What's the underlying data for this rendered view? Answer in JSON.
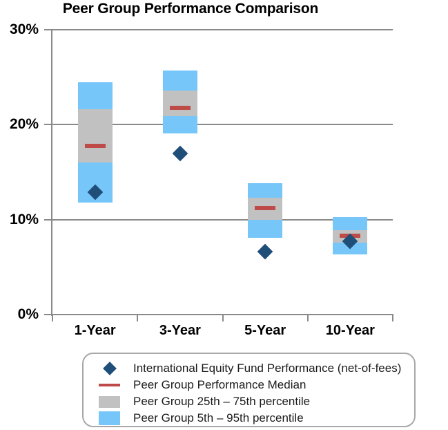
{
  "chart_data": {
    "type": "range-bar",
    "title": "Peer Group Performance Comparison",
    "categories": [
      "1-Year",
      "3-Year",
      "5-Year",
      "10-Year"
    ],
    "xlabel": "",
    "ylabel": "",
    "unit": "%",
    "ylim": [
      0,
      30
    ],
    "y_axis": {
      "tick_values": [
        30,
        20,
        10,
        0
      ],
      "tick_labels": [
        "30%",
        "20%",
        "10%",
        "0%"
      ]
    },
    "grid": true,
    "legend_position": "bottom",
    "series": [
      {
        "id": "fund",
        "name": "International Equity Fund Performance (net-of-fees)",
        "marker": "diamond",
        "color": "#1F4E79",
        "values": [
          12.9,
          17.0,
          6.6,
          7.7
        ]
      },
      {
        "id": "median",
        "name": "Peer Group Performance Median",
        "marker": "dash",
        "color": "#BE4B48",
        "values": [
          17.8,
          21.8,
          11.2,
          8.3
        ]
      },
      {
        "id": "p25-75",
        "name": "Peer Group 25th – 75th percentile",
        "marker": "bar",
        "color": "#C1C1C1",
        "low": [
          16.0,
          20.9,
          10.0,
          7.6
        ],
        "high": [
          21.6,
          23.6,
          12.3,
          8.9
        ]
      },
      {
        "id": "p5-95",
        "name": "Peer Group 5th – 95th percentile",
        "marker": "bar",
        "color": "#76C6FA",
        "low": [
          11.8,
          19.1,
          8.1,
          6.3
        ],
        "high": [
          24.5,
          25.7,
          13.8,
          10.3
        ]
      }
    ]
  }
}
